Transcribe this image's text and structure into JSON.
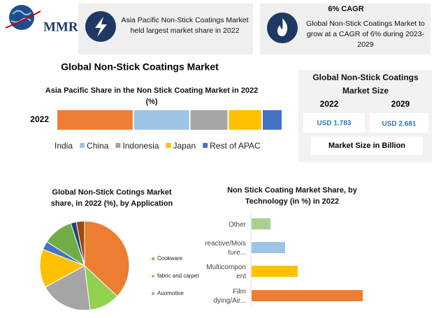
{
  "header": {
    "logo": "MMR",
    "boxes": [
      {
        "text": "Asia Pacific Non-Stick Coatings Market held largest market share in 2022"
      },
      {
        "title": "6% CAGR",
        "text": "Global Non-Stick Coatings Market to grow at a CAGR of 6% during 2023-2029"
      }
    ]
  },
  "title": "Global Non-Stick Coatings Market",
  "market_size": {
    "title": "Global Non-Stick Coatings Market Size",
    "columns": [
      {
        "year": "2022",
        "value": "USD 1.783"
      },
      {
        "year": "2029",
        "value": "USD 2.681"
      }
    ],
    "caption": "Market Size in Billion"
  },
  "chart_data": [
    {
      "type": "stacked-bar",
      "title": "Asia Pacific Share in the Non Stick Coating Market in 2022 (%)",
      "categories": [
        "2022"
      ],
      "series": [
        {
          "name": "India",
          "color": "#ed7d31",
          "values": [
            34
          ]
        },
        {
          "name": "China",
          "color": "#9dc3e6",
          "values": [
            25
          ]
        },
        {
          "name": "Indonesia",
          "color": "#a5a5a5",
          "values": [
            17
          ]
        },
        {
          "name": "Japan",
          "color": "#ffc000",
          "values": [
            15
          ]
        },
        {
          "name": "Rest of APAC",
          "color": "#4472c4",
          "values": [
            9
          ]
        }
      ]
    },
    {
      "type": "pie",
      "title": "Global Non-Stick Cotings Market share, in 2022 (%), by Application",
      "categories": [
        "Cookware",
        "fabric and carpet",
        "Auomotive",
        null,
        null,
        null,
        null,
        null
      ],
      "values": [
        37,
        11,
        19,
        14,
        3,
        11,
        2,
        3
      ],
      "colors": [
        "#ed7d31",
        "#92d050",
        "#a5a5a5",
        "#ffc000",
        "#4472c4",
        "#70ad47",
        "#264478",
        "#9e480e"
      ]
    },
    {
      "type": "hbar",
      "title": "Non Stick Coating Market Share, by Technology (in %) in 2022",
      "categories": [
        "Other",
        "reactive/Moisture...",
        "Multicomponent",
        "Film dying/Air..."
      ],
      "values": [
        9,
        16,
        22,
        53
      ],
      "colors": [
        "#a9d18e",
        "#9dc3e6",
        "#ffc000",
        "#ed7d31"
      ]
    }
  ]
}
